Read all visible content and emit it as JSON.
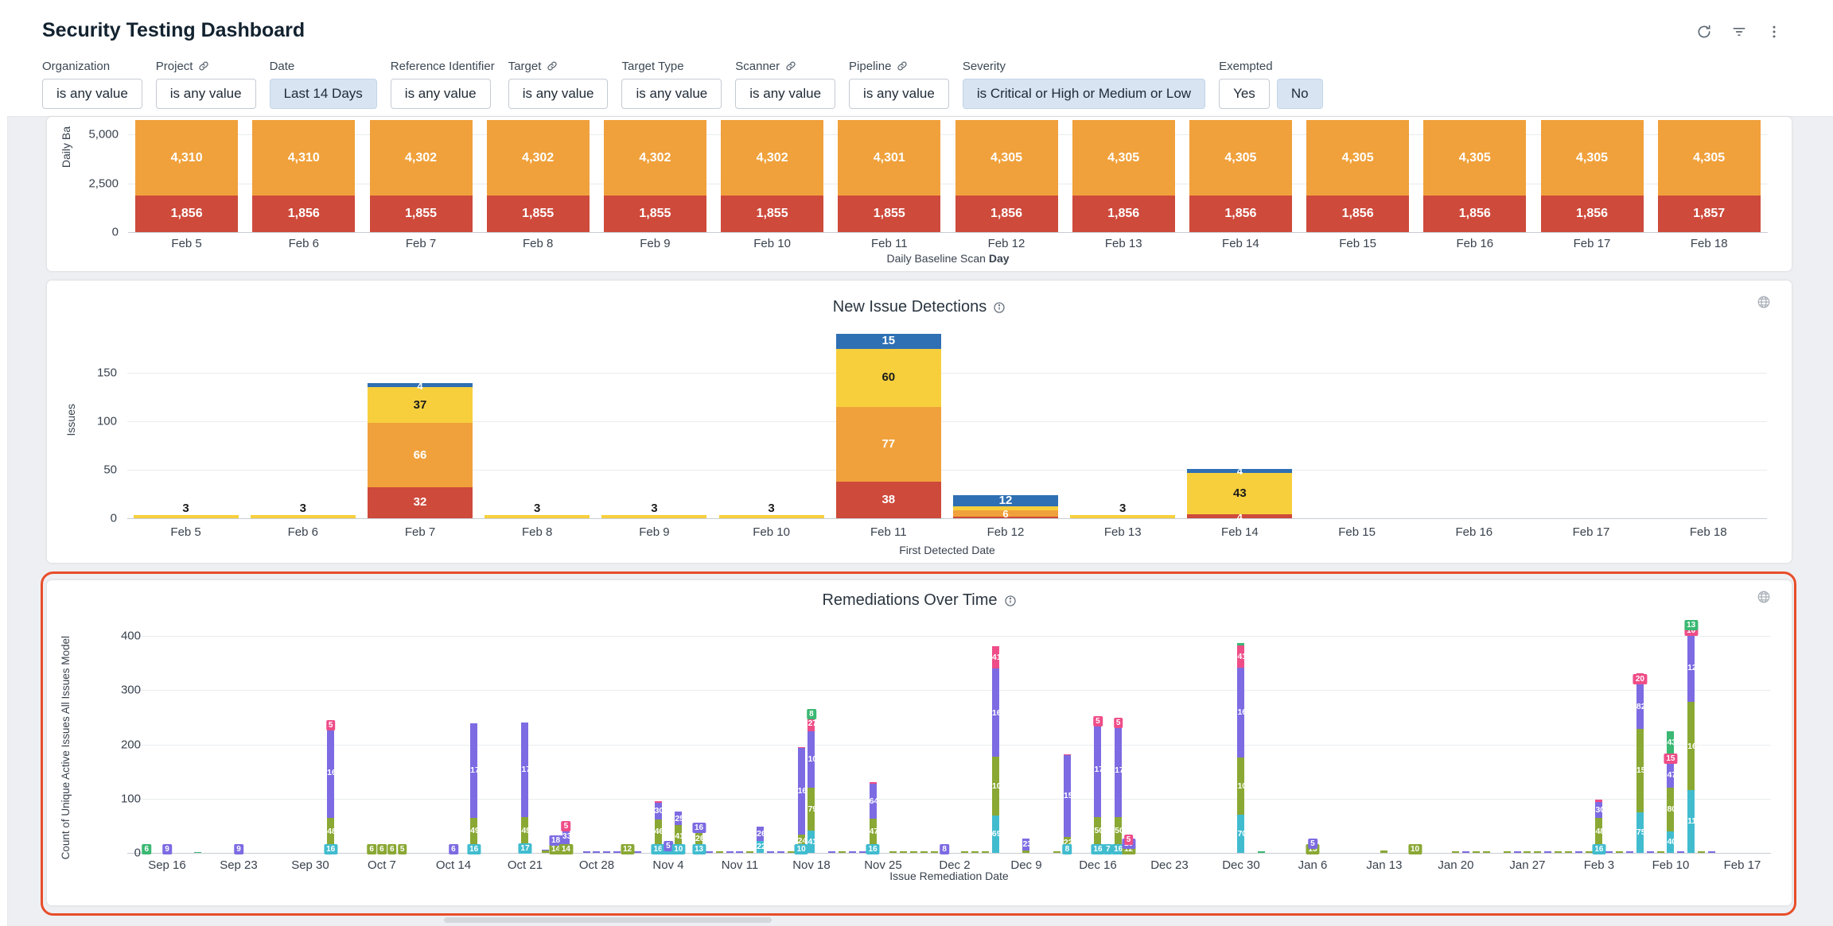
{
  "header": {
    "title": "Security Testing Dashboard",
    "actions": [
      "refresh-icon",
      "filter-icon",
      "more-vert-icon"
    ]
  },
  "filters": [
    {
      "label": "Organization",
      "linked": false,
      "buttons": [
        {
          "text": "is any value",
          "active": false
        }
      ]
    },
    {
      "label": "Project",
      "linked": true,
      "buttons": [
        {
          "text": "is any value",
          "active": false
        }
      ]
    },
    {
      "label": "Date",
      "linked": false,
      "buttons": [
        {
          "text": "Last 14 Days",
          "active": true
        }
      ]
    },
    {
      "label": "Reference Identifier",
      "linked": false,
      "buttons": [
        {
          "text": "is any value",
          "active": false
        }
      ]
    },
    {
      "label": "Target",
      "linked": true,
      "buttons": [
        {
          "text": "is any value",
          "active": false
        }
      ]
    },
    {
      "label": "Target Type",
      "linked": false,
      "buttons": [
        {
          "text": "is any value",
          "active": false
        }
      ]
    },
    {
      "label": "Scanner",
      "linked": true,
      "buttons": [
        {
          "text": "is any value",
          "active": false
        }
      ]
    },
    {
      "label": "Pipeline",
      "linked": true,
      "buttons": [
        {
          "text": "is any value",
          "active": false
        }
      ]
    },
    {
      "label": "Severity",
      "linked": false,
      "buttons": [
        {
          "text": "is Critical or High or Medium or Low",
          "active": true
        }
      ]
    },
    {
      "label": "Exempted",
      "linked": false,
      "buttons": [
        {
          "text": "Yes",
          "active": false
        },
        {
          "text": "No",
          "active": true
        }
      ]
    }
  ],
  "chart_data": [
    {
      "id": "daily-baseline-scan",
      "type": "bar",
      "stacked": true,
      "ylabel_visible": "Daily Ba",
      "xlabel_prefix": "Daily Baseline Scan",
      "xlabel_bold": "Day",
      "yticks": [
        "5,000",
        "2,500",
        "0"
      ],
      "categories": [
        "Feb 5",
        "Feb 6",
        "Feb 7",
        "Feb 8",
        "Feb 9",
        "Feb 10",
        "Feb 11",
        "Feb 12",
        "Feb 13",
        "Feb 14",
        "Feb 15",
        "Feb 16",
        "Feb 17",
        "Feb 18"
      ],
      "series": [
        {
          "name": "red",
          "color": "#ce4a3b",
          "values": [
            1856,
            1856,
            1855,
            1855,
            1855,
            1855,
            1855,
            1856,
            1856,
            1856,
            1856,
            1856,
            1856,
            1857
          ]
        },
        {
          "name": "orange",
          "color": "#f0a13b",
          "values": [
            4310,
            4310,
            4302,
            4302,
            4302,
            4302,
            4301,
            4305,
            4305,
            4305,
            4305,
            4305,
            4305,
            4305
          ]
        }
      ]
    },
    {
      "id": "new-issue-detections",
      "type": "bar",
      "stacked": true,
      "title": "New Issue Detections",
      "ylabel": "Issues",
      "xlabel": "First Detected Date",
      "yticks": [
        0,
        50,
        100,
        150
      ],
      "categories": [
        "Feb 5",
        "Feb 6",
        "Feb 7",
        "Feb 8",
        "Feb 9",
        "Feb 10",
        "Feb 11",
        "Feb 12",
        "Feb 13",
        "Feb 14",
        "Feb 15",
        "Feb 16",
        "Feb 17",
        "Feb 18"
      ],
      "series": [
        {
          "name": "red",
          "color": "#ce4a3b",
          "values": [
            0,
            0,
            32,
            0,
            0,
            0,
            38,
            2,
            0,
            4,
            0,
            0,
            0,
            0
          ]
        },
        {
          "name": "orange",
          "color": "#f0a13b",
          "values": [
            0,
            0,
            66,
            0,
            0,
            0,
            77,
            6,
            0,
            0,
            0,
            0,
            0,
            0
          ]
        },
        {
          "name": "yellow",
          "color": "#f7cf3d",
          "values": [
            3,
            3,
            37,
            3,
            3,
            3,
            60,
            4,
            3,
            43,
            0,
            0,
            0,
            0
          ]
        },
        {
          "name": "blue",
          "color": "#2f6fb3",
          "values": [
            0,
            0,
            4,
            0,
            0,
            0,
            15,
            12,
            0,
            4,
            0,
            0,
            0,
            0
          ]
        }
      ]
    },
    {
      "id": "remediations-over-time",
      "type": "bar",
      "stacked": true,
      "title": "Remediations Over Time",
      "ylabel": "Count of Unique Active Issues All Issues Model",
      "xlabel": "Issue Remediation Date",
      "yticks": [
        0,
        100,
        200,
        300,
        400
      ],
      "colors": {
        "teal": "#41bccf",
        "olive": "#8aa834",
        "purple": "#7c6be2",
        "magenta": "#ee4d88",
        "green": "#3bb873"
      },
      "xticks": [
        {
          "label": "Sep 16",
          "offset": 3
        },
        {
          "label": "Sep 23",
          "offset": 10
        },
        {
          "label": "Sep 30",
          "offset": 17
        },
        {
          "label": "Oct 7",
          "offset": 24
        },
        {
          "label": "Oct 14",
          "offset": 31
        },
        {
          "label": "Oct 21",
          "offset": 38
        },
        {
          "label": "Oct 28",
          "offset": 45
        },
        {
          "label": "Nov 4",
          "offset": 52
        },
        {
          "label": "Nov 11",
          "offset": 59
        },
        {
          "label": "Nov 18",
          "offset": 66
        },
        {
          "label": "Nov 25",
          "offset": 73
        },
        {
          "label": "Dec 2",
          "offset": 80
        },
        {
          "label": "Dec 9",
          "offset": 87
        },
        {
          "label": "Dec 16",
          "offset": 94
        },
        {
          "label": "Dec 23",
          "offset": 101
        },
        {
          "label": "Dec 30",
          "offset": 108
        },
        {
          "label": "Jan 6",
          "offset": 115
        },
        {
          "label": "Jan 13",
          "offset": 122
        },
        {
          "label": "Jan 20",
          "offset": 129
        },
        {
          "label": "Jan 27",
          "offset": 136
        },
        {
          "label": "Feb 3",
          "offset": 143
        },
        {
          "label": "Feb 10",
          "offset": 150
        },
        {
          "label": "Feb 17",
          "offset": 157
        }
      ],
      "bars": [
        {
          "offset": 1,
          "segments": {
            "teal": 2,
            "green": 6
          }
        },
        {
          "offset": 3,
          "segments": {
            "purple": 9,
            "magenta": 4
          }
        },
        {
          "offset": 6,
          "segments": {
            "green": 2
          }
        },
        {
          "offset": 10,
          "segments": {
            "purple": 9,
            "magenta": 4
          }
        },
        {
          "offset": 19,
          "segments": {
            "teal": 16,
            "olive": 48,
            "purple": 169,
            "magenta": 5
          }
        },
        {
          "offset": 23,
          "segments": {
            "olive": 6,
            "magenta": 2
          }
        },
        {
          "offset": 24,
          "segments": {
            "olive": 6,
            "magenta": 2
          }
        },
        {
          "offset": 25,
          "segments": {
            "olive": 6,
            "magenta": 2
          }
        },
        {
          "offset": 26,
          "segments": {
            "olive": 5,
            "magenta": 2
          }
        },
        {
          "offset": 31,
          "segments": {
            "purple": 6,
            "magenta": 2
          }
        },
        {
          "offset": 33,
          "segments": {
            "teal": 16,
            "olive": 49,
            "purple": 174
          }
        },
        {
          "offset": 38,
          "segments": {
            "teal": 17,
            "olive": 49,
            "purple": 175
          }
        },
        {
          "offset": 40,
          "segments": {
            "olive": 4,
            "purple": 2
          }
        },
        {
          "offset": 41,
          "segments": {
            "olive": 14,
            "purple": 18
          }
        },
        {
          "offset": 42,
          "segments": {
            "olive": 14,
            "purple": 33,
            "magenta": 5
          }
        },
        {
          "offset": 44,
          "segments": {
            "purple": 3
          }
        },
        {
          "offset": 45,
          "segments": {
            "purple": 3
          }
        },
        {
          "offset": 46,
          "segments": {
            "purple": 3
          }
        },
        {
          "offset": 47,
          "segments": {
            "purple": 3
          }
        },
        {
          "offset": 48,
          "segments": {
            "olive": 12,
            "magenta": 3
          }
        },
        {
          "offset": 49,
          "segments": {
            "purple": 3
          }
        },
        {
          "offset": 51,
          "segments": {
            "teal": 16,
            "olive": 46,
            "purple": 30,
            "magenta": 4
          }
        },
        {
          "offset": 52,
          "segments": {
            "teal": 10,
            "purple": 5,
            "magenta": 3
          }
        },
        {
          "offset": 53,
          "segments": {
            "teal": 10,
            "olive": 41,
            "purple": 25
          }
        },
        {
          "offset": 55,
          "segments": {
            "teal": 13,
            "olive": 26,
            "purple": 16
          }
        },
        {
          "offset": 56,
          "segments": {
            "purple": 3
          }
        },
        {
          "offset": 57,
          "segments": {
            "olive": 3
          }
        },
        {
          "offset": 58,
          "segments": {
            "purple": 3
          }
        },
        {
          "offset": 59,
          "segments": {
            "purple": 3
          }
        },
        {
          "offset": 60,
          "segments": {
            "olive": 3
          }
        },
        {
          "offset": 61,
          "segments": {
            "teal": 22,
            "purple": 26
          }
        },
        {
          "offset": 62,
          "segments": {
            "purple": 3
          }
        },
        {
          "offset": 63,
          "segments": {
            "purple": 3
          }
        },
        {
          "offset": 64,
          "segments": {
            "olive": 3
          }
        },
        {
          "offset": 65,
          "segments": {
            "teal": 10,
            "olive": 24,
            "purple": 160,
            "magenta": 1
          }
        },
        {
          "offset": 66,
          "segments": {
            "teal": 41,
            "olive": 79,
            "purple": 105,
            "magenta": 27,
            "green": 8
          }
        },
        {
          "offset": 68,
          "segments": {
            "purple": 3
          }
        },
        {
          "offset": 69,
          "segments": {
            "olive": 3
          }
        },
        {
          "offset": 70,
          "segments": {
            "purple": 3
          }
        },
        {
          "offset": 71,
          "segments": {
            "purple": 3
          }
        },
        {
          "offset": 72,
          "segments": {
            "teal": 16,
            "olive": 47,
            "purple": 64,
            "magenta": 4
          }
        },
        {
          "offset": 74,
          "segments": {
            "olive": 3
          }
        },
        {
          "offset": 75,
          "segments": {
            "olive": 3
          }
        },
        {
          "offset": 76,
          "segments": {
            "olive": 3
          }
        },
        {
          "offset": 77,
          "segments": {
            "olive": 3
          }
        },
        {
          "offset": 78,
          "segments": {
            "olive": 3
          }
        },
        {
          "offset": 79,
          "segments": {
            "purple": 8,
            "magenta": 4
          }
        },
        {
          "offset": 81,
          "segments": {
            "olive": 3
          }
        },
        {
          "offset": 82,
          "segments": {
            "olive": 3
          }
        },
        {
          "offset": 83,
          "segments": {
            "olive": 3
          }
        },
        {
          "offset": 84,
          "segments": {
            "teal": 69,
            "olive": 108,
            "purple": 163,
            "magenta": 41
          }
        },
        {
          "offset": 87,
          "segments": {
            "olive": 4,
            "purple": 23
          }
        },
        {
          "offset": 90,
          "segments": {
            "olive": 3
          }
        },
        {
          "offset": 91,
          "segments": {
            "teal": 8,
            "olive": 22,
            "purple": 150,
            "magenta": 2
          }
        },
        {
          "offset": 94,
          "segments": {
            "teal": 16,
            "olive": 50,
            "purple": 175,
            "magenta": 5
          }
        },
        {
          "offset": 95,
          "segments": {
            "teal": 7
          }
        },
        {
          "offset": 96,
          "segments": {
            "teal": 16,
            "olive": 50,
            "purple": 172,
            "magenta": 5
          }
        },
        {
          "offset": 97,
          "segments": {
            "olive": 12,
            "purple": 10,
            "magenta": 5
          }
        },
        {
          "offset": 108,
          "segments": {
            "teal": 70,
            "olive": 106,
            "purple": 166,
            "magenta": 41,
            "green": 4
          }
        },
        {
          "offset": 110,
          "segments": {
            "green": 3
          }
        },
        {
          "offset": 115,
          "segments": {
            "olive": 15,
            "purple": 5,
            "magenta": 3
          }
        },
        {
          "offset": 122,
          "segments": {
            "olive": 4
          }
        },
        {
          "offset": 125,
          "segments": {
            "olive": 10,
            "purple": 3
          }
        },
        {
          "offset": 129,
          "segments": {
            "olive": 3
          }
        },
        {
          "offset": 130,
          "segments": {
            "purple": 3
          }
        },
        {
          "offset": 131,
          "segments": {
            "olive": 3
          }
        },
        {
          "offset": 132,
          "segments": {
            "olive": 3
          }
        },
        {
          "offset": 134,
          "segments": {
            "olive": 3
          }
        },
        {
          "offset": 135,
          "segments": {
            "purple": 3
          }
        },
        {
          "offset": 136,
          "segments": {
            "olive": 3
          }
        },
        {
          "offset": 137,
          "segments": {
            "olive": 3
          }
        },
        {
          "offset": 138,
          "segments": {
            "purple": 3
          }
        },
        {
          "offset": 139,
          "segments": {
            "olive": 3
          }
        },
        {
          "offset": 140,
          "segments": {
            "olive": 3
          }
        },
        {
          "offset": 141,
          "segments": {
            "purple": 3
          }
        },
        {
          "offset": 142,
          "segments": {
            "olive": 3
          }
        },
        {
          "offset": 143,
          "segments": {
            "teal": 16,
            "olive": 48,
            "purple": 30,
            "magenta": 4
          }
        },
        {
          "offset": 144,
          "segments": {
            "purple": 3
          }
        },
        {
          "offset": 145,
          "segments": {
            "olive": 3
          }
        },
        {
          "offset": 146,
          "segments": {
            "purple": 3
          }
        },
        {
          "offset": 147,
          "segments": {
            "teal": 75,
            "olive": 154,
            "purple": 82,
            "magenta": 20
          }
        },
        {
          "offset": 148,
          "segments": {
            "purple": 3
          }
        },
        {
          "offset": 149,
          "segments": {
            "olive": 3
          }
        },
        {
          "offset": 150,
          "segments": {
            "teal": 40,
            "olive": 80,
            "purple": 47,
            "magenta": 15,
            "green": 43
          }
        },
        {
          "offset": 151,
          "segments": {
            "purple": 3
          }
        },
        {
          "offset": 152,
          "segments": {
            "teal": 116,
            "olive": 162,
            "purple": 127,
            "magenta": 10,
            "green": 13
          }
        },
        {
          "offset": 153,
          "segments": {
            "olive": 3
          }
        },
        {
          "offset": 154,
          "segments": {
            "purple": 3
          }
        }
      ]
    }
  ]
}
